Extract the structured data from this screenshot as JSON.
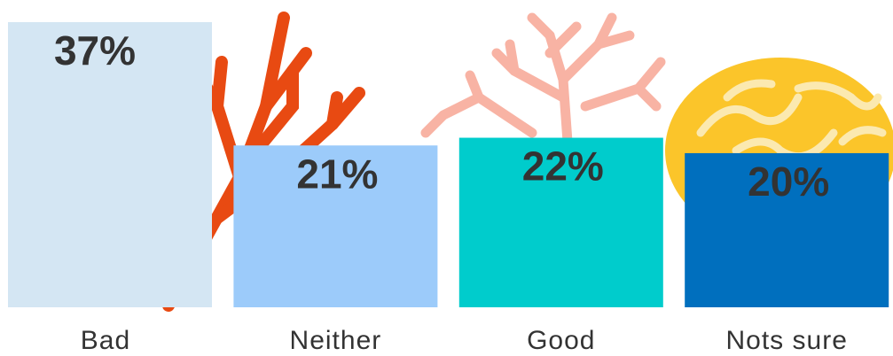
{
  "chart_data": {
    "type": "bar",
    "categories": [
      "Bad",
      "Neither",
      "Good",
      "Nots sure"
    ],
    "values": [
      37,
      21,
      22,
      20
    ],
    "value_labels": [
      "37%",
      "21%",
      "22%",
      "20%"
    ],
    "colors": [
      "#d4e6f3",
      "#9ccbfa",
      "#00cccc",
      "#006fbe"
    ],
    "ylim": [
      0,
      37
    ]
  }
}
